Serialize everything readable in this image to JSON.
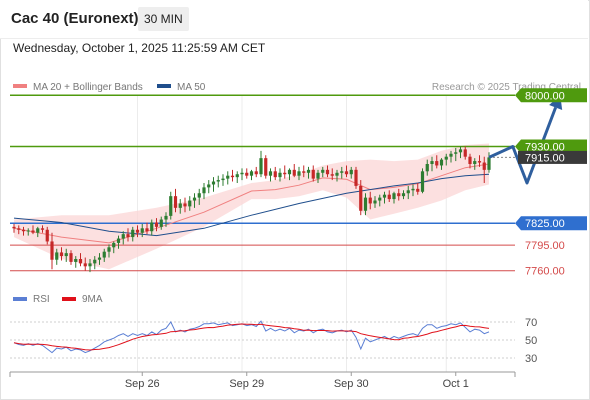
{
  "header": {
    "instrument": "Cac 40 (Euronext)",
    "timeframe": "30 MIN",
    "timestamp": "Wednesday, October 1, 2025 11:25:59 AM CET"
  },
  "legend": {
    "items": [
      {
        "label": "MA 20 + Bollinger Bands",
        "color": "#f08080"
      },
      {
        "label": "MA 50",
        "color": "#1f4e8c"
      }
    ],
    "copyright": "Research © 2025 Trading Central"
  },
  "colors": {
    "candle_up": "#2e7d32",
    "candle_down": "#c62828",
    "resistance": "#4f9a0e",
    "pivot": "#2f6fcf",
    "support": "#d44a4a",
    "bollinger_fill": "#fbd6d6",
    "ma20": "#f08080",
    "ma50": "#1f4e8c",
    "rsi": "#5b7fd4",
    "rsi_ma": "#e0101a",
    "arrow": "#2f5f9e",
    "last_price_bg": "#3a3a3a"
  },
  "rsi_panel": {
    "legend": [
      {
        "label": "RSI",
        "color": "#5b7fd4"
      },
      {
        "label": "9MA",
        "color": "#e0101a"
      }
    ],
    "ylim": [
      30,
      70
    ],
    "ticks": [
      "70",
      "50",
      "30"
    ]
  },
  "chart_data": {
    "type": "candlestick",
    "ylim": [
      7750,
      8010
    ],
    "x_ticks": [
      "Sep 26",
      "Sep 29",
      "Sep 30",
      "Oct 1"
    ],
    "last_price": {
      "value": 7915.0,
      "label": "7915.00"
    },
    "levels": [
      {
        "value": 8000,
        "label": "8000.00",
        "kind": "resistance",
        "style": "box"
      },
      {
        "value": 7930,
        "label": "7930.00",
        "kind": "resistance",
        "style": "box"
      },
      {
        "value": 7825,
        "label": "7825.00",
        "kind": "pivot",
        "style": "box"
      },
      {
        "value": 7795,
        "label": "7795.00",
        "kind": "support",
        "style": "text"
      },
      {
        "value": 7760,
        "label": "7760.00",
        "kind": "support",
        "style": "text"
      }
    ],
    "candles": [
      [
        7820,
        7824,
        7812,
        7818
      ],
      [
        7818,
        7822,
        7810,
        7816
      ],
      [
        7816,
        7820,
        7808,
        7814
      ],
      [
        7814,
        7818,
        7808,
        7815
      ],
      [
        7815,
        7822,
        7810,
        7812
      ],
      [
        7812,
        7820,
        7806,
        7818
      ],
      [
        7818,
        7822,
        7812,
        7816
      ],
      [
        7816,
        7820,
        7796,
        7800
      ],
      [
        7800,
        7812,
        7762,
        7775
      ],
      [
        7775,
        7790,
        7768,
        7785
      ],
      [
        7785,
        7792,
        7774,
        7780
      ],
      [
        7780,
        7790,
        7772,
        7784
      ],
      [
        7784,
        7788,
        7768,
        7772
      ],
      [
        7772,
        7780,
        7764,
        7776
      ],
      [
        7776,
        7784,
        7766,
        7770
      ],
      [
        7770,
        7778,
        7760,
        7766
      ],
      [
        7766,
        7776,
        7758,
        7770
      ],
      [
        7770,
        7780,
        7762,
        7775
      ],
      [
        7775,
        7784,
        7768,
        7778
      ],
      [
        7778,
        7790,
        7772,
        7786
      ],
      [
        7786,
        7796,
        7778,
        7792
      ],
      [
        7792,
        7800,
        7784,
        7798
      ],
      [
        7798,
        7808,
        7790,
        7804
      ],
      [
        7804,
        7814,
        7796,
        7810
      ],
      [
        7810,
        7818,
        7800,
        7806
      ],
      [
        7806,
        7820,
        7800,
        7816
      ],
      [
        7816,
        7822,
        7806,
        7812
      ],
      [
        7812,
        7824,
        7806,
        7818
      ],
      [
        7818,
        7826,
        7810,
        7814
      ],
      [
        7814,
        7830,
        7808,
        7826
      ],
      [
        7826,
        7832,
        7814,
        7820
      ],
      [
        7820,
        7834,
        7816,
        7830
      ],
      [
        7830,
        7840,
        7820,
        7835
      ],
      [
        7835,
        7868,
        7830,
        7862
      ],
      [
        7862,
        7872,
        7840,
        7846
      ],
      [
        7846,
        7858,
        7838,
        7852
      ],
      [
        7852,
        7860,
        7840,
        7848
      ],
      [
        7848,
        7862,
        7842,
        7856
      ],
      [
        7856,
        7866,
        7846,
        7860
      ],
      [
        7860,
        7872,
        7850,
        7866
      ],
      [
        7866,
        7880,
        7858,
        7874
      ],
      [
        7874,
        7884,
        7866,
        7878
      ],
      [
        7878,
        7888,
        7868,
        7882
      ],
      [
        7882,
        7890,
        7874,
        7884
      ],
      [
        7884,
        7892,
        7876,
        7886
      ],
      [
        7886,
        7896,
        7878,
        7890
      ],
      [
        7890,
        7898,
        7882,
        7888
      ],
      [
        7888,
        7896,
        7880,
        7892
      ],
      [
        7892,
        7900,
        7884,
        7894
      ],
      [
        7894,
        7900,
        7886,
        7890
      ],
      [
        7890,
        7898,
        7884,
        7896
      ],
      [
        7896,
        7902,
        7888,
        7892
      ],
      [
        7892,
        7924,
        7888,
        7914
      ],
      [
        7914,
        7918,
        7886,
        7890
      ],
      [
        7890,
        7900,
        7882,
        7896
      ],
      [
        7896,
        7902,
        7884,
        7888
      ],
      [
        7888,
        7900,
        7882,
        7894
      ],
      [
        7894,
        7904,
        7886,
        7892
      ],
      [
        7892,
        7900,
        7884,
        7898
      ],
      [
        7898,
        7906,
        7888,
        7890
      ],
      [
        7890,
        7902,
        7884,
        7896
      ],
      [
        7896,
        7904,
        7888,
        7894
      ],
      [
        7894,
        7902,
        7886,
        7898
      ],
      [
        7898,
        7904,
        7882,
        7886
      ],
      [
        7886,
        7898,
        7880,
        7894
      ],
      [
        7894,
        7902,
        7888,
        7898
      ],
      [
        7898,
        7904,
        7888,
        7892
      ],
      [
        7892,
        7900,
        7884,
        7890
      ],
      [
        7890,
        7898,
        7882,
        7894
      ],
      [
        7894,
        7902,
        7886,
        7896
      ],
      [
        7896,
        7904,
        7888,
        7892
      ],
      [
        7892,
        7902,
        7886,
        7898
      ],
      [
        7898,
        7902,
        7872,
        7876
      ],
      [
        7876,
        7884,
        7836,
        7842
      ],
      [
        7842,
        7866,
        7836,
        7860
      ],
      [
        7860,
        7868,
        7844,
        7852
      ],
      [
        7852,
        7862,
        7846,
        7856
      ],
      [
        7856,
        7864,
        7848,
        7860
      ],
      [
        7860,
        7868,
        7852,
        7864
      ],
      [
        7864,
        7870,
        7854,
        7858
      ],
      [
        7858,
        7868,
        7852,
        7866
      ],
      [
        7866,
        7872,
        7856,
        7862
      ],
      [
        7862,
        7870,
        7858,
        7866
      ],
      [
        7866,
        7876,
        7858,
        7870
      ],
      [
        7870,
        7878,
        7862,
        7872
      ],
      [
        7872,
        7880,
        7864,
        7868
      ],
      [
        7868,
        7900,
        7866,
        7896
      ],
      [
        7896,
        7912,
        7890,
        7906
      ],
      [
        7906,
        7916,
        7896,
        7910
      ],
      [
        7910,
        7918,
        7900,
        7904
      ],
      [
        7904,
        7914,
        7898,
        7912
      ],
      [
        7912,
        7920,
        7904,
        7916
      ],
      [
        7916,
        7924,
        7908,
        7920
      ],
      [
        7920,
        7928,
        7910,
        7922
      ],
      [
        7922,
        7930,
        7914,
        7926
      ],
      [
        7926,
        7930,
        7912,
        7916
      ],
      [
        7916,
        7920,
        7900,
        7906
      ],
      [
        7906,
        7914,
        7898,
        7910
      ],
      [
        7910,
        7918,
        7902,
        7908
      ],
      [
        7908,
        7916,
        7880,
        7898
      ],
      [
        7898,
        7922,
        7894,
        7915
      ]
    ],
    "bollinger": {
      "upper": [
        [
          0,
          7830
        ],
        [
          10,
          7836
        ],
        [
          20,
          7836
        ],
        [
          30,
          7846
        ],
        [
          40,
          7860
        ],
        [
          50,
          7880
        ],
        [
          55,
          7884
        ],
        [
          60,
          7892
        ],
        [
          65,
          7904
        ],
        [
          70,
          7910
        ],
        [
          75,
          7912
        ],
        [
          80,
          7910
        ],
        [
          85,
          7912
        ],
        [
          90,
          7924
        ],
        [
          95,
          7932
        ],
        [
          100,
          7934
        ]
      ],
      "lower": [
        [
          0,
          7806
        ],
        [
          10,
          7776
        ],
        [
          20,
          7762
        ],
        [
          30,
          7790
        ],
        [
          40,
          7820
        ],
        [
          50,
          7858
        ],
        [
          55,
          7858
        ],
        [
          60,
          7862
        ],
        [
          65,
          7870
        ],
        [
          70,
          7860
        ],
        [
          75,
          7830
        ],
        [
          80,
          7838
        ],
        [
          85,
          7846
        ],
        [
          90,
          7856
        ],
        [
          95,
          7870
        ],
        [
          100,
          7878
        ]
      ],
      "ma20": [
        [
          0,
          7818
        ],
        [
          10,
          7806
        ],
        [
          20,
          7798
        ],
        [
          30,
          7818
        ],
        [
          40,
          7840
        ],
        [
          50,
          7869
        ],
        [
          55,
          7871
        ],
        [
          60,
          7877
        ],
        [
          65,
          7887
        ],
        [
          70,
          7885
        ],
        [
          75,
          7871
        ],
        [
          80,
          7874
        ],
        [
          85,
          7879
        ],
        [
          90,
          7890
        ],
        [
          95,
          7901
        ],
        [
          100,
          7906
        ]
      ]
    },
    "ma50": [
      [
        0,
        7832
      ],
      [
        10,
        7826
      ],
      [
        20,
        7814
      ],
      [
        30,
        7808
      ],
      [
        40,
        7818
      ],
      [
        50,
        7836
      ],
      [
        60,
        7852
      ],
      [
        70,
        7866
      ],
      [
        80,
        7876
      ],
      [
        85,
        7880
      ],
      [
        90,
        7886
      ],
      [
        95,
        7890
      ],
      [
        100,
        7892
      ]
    ],
    "forecast_path": [
      [
        100,
        7915
      ],
      [
        105,
        7930
      ],
      [
        108,
        7880
      ],
      [
        115,
        8000
      ]
    ],
    "rsi": [
      47,
      45,
      44,
      46,
      44,
      46,
      44,
      40,
      36,
      41,
      40,
      42,
      38,
      40,
      39,
      36,
      38,
      41,
      44,
      48,
      50,
      52,
      55,
      57,
      54,
      57,
      55,
      57,
      55,
      59,
      56,
      61,
      63,
      70,
      59,
      61,
      59,
      62,
      63,
      65,
      68,
      68,
      69,
      67,
      68,
      69,
      66,
      67,
      68,
      66,
      67,
      65,
      71,
      60,
      63,
      60,
      62,
      60,
      63,
      58,
      61,
      60,
      62,
      58,
      61,
      62,
      59,
      58,
      60,
      61,
      59,
      61,
      53,
      40,
      52,
      48,
      50,
      52,
      54,
      51,
      54,
      52,
      54,
      56,
      57,
      55,
      63,
      67,
      67,
      63,
      65,
      66,
      68,
      67,
      69,
      64,
      59,
      62,
      61,
      57,
      59
    ]
  }
}
